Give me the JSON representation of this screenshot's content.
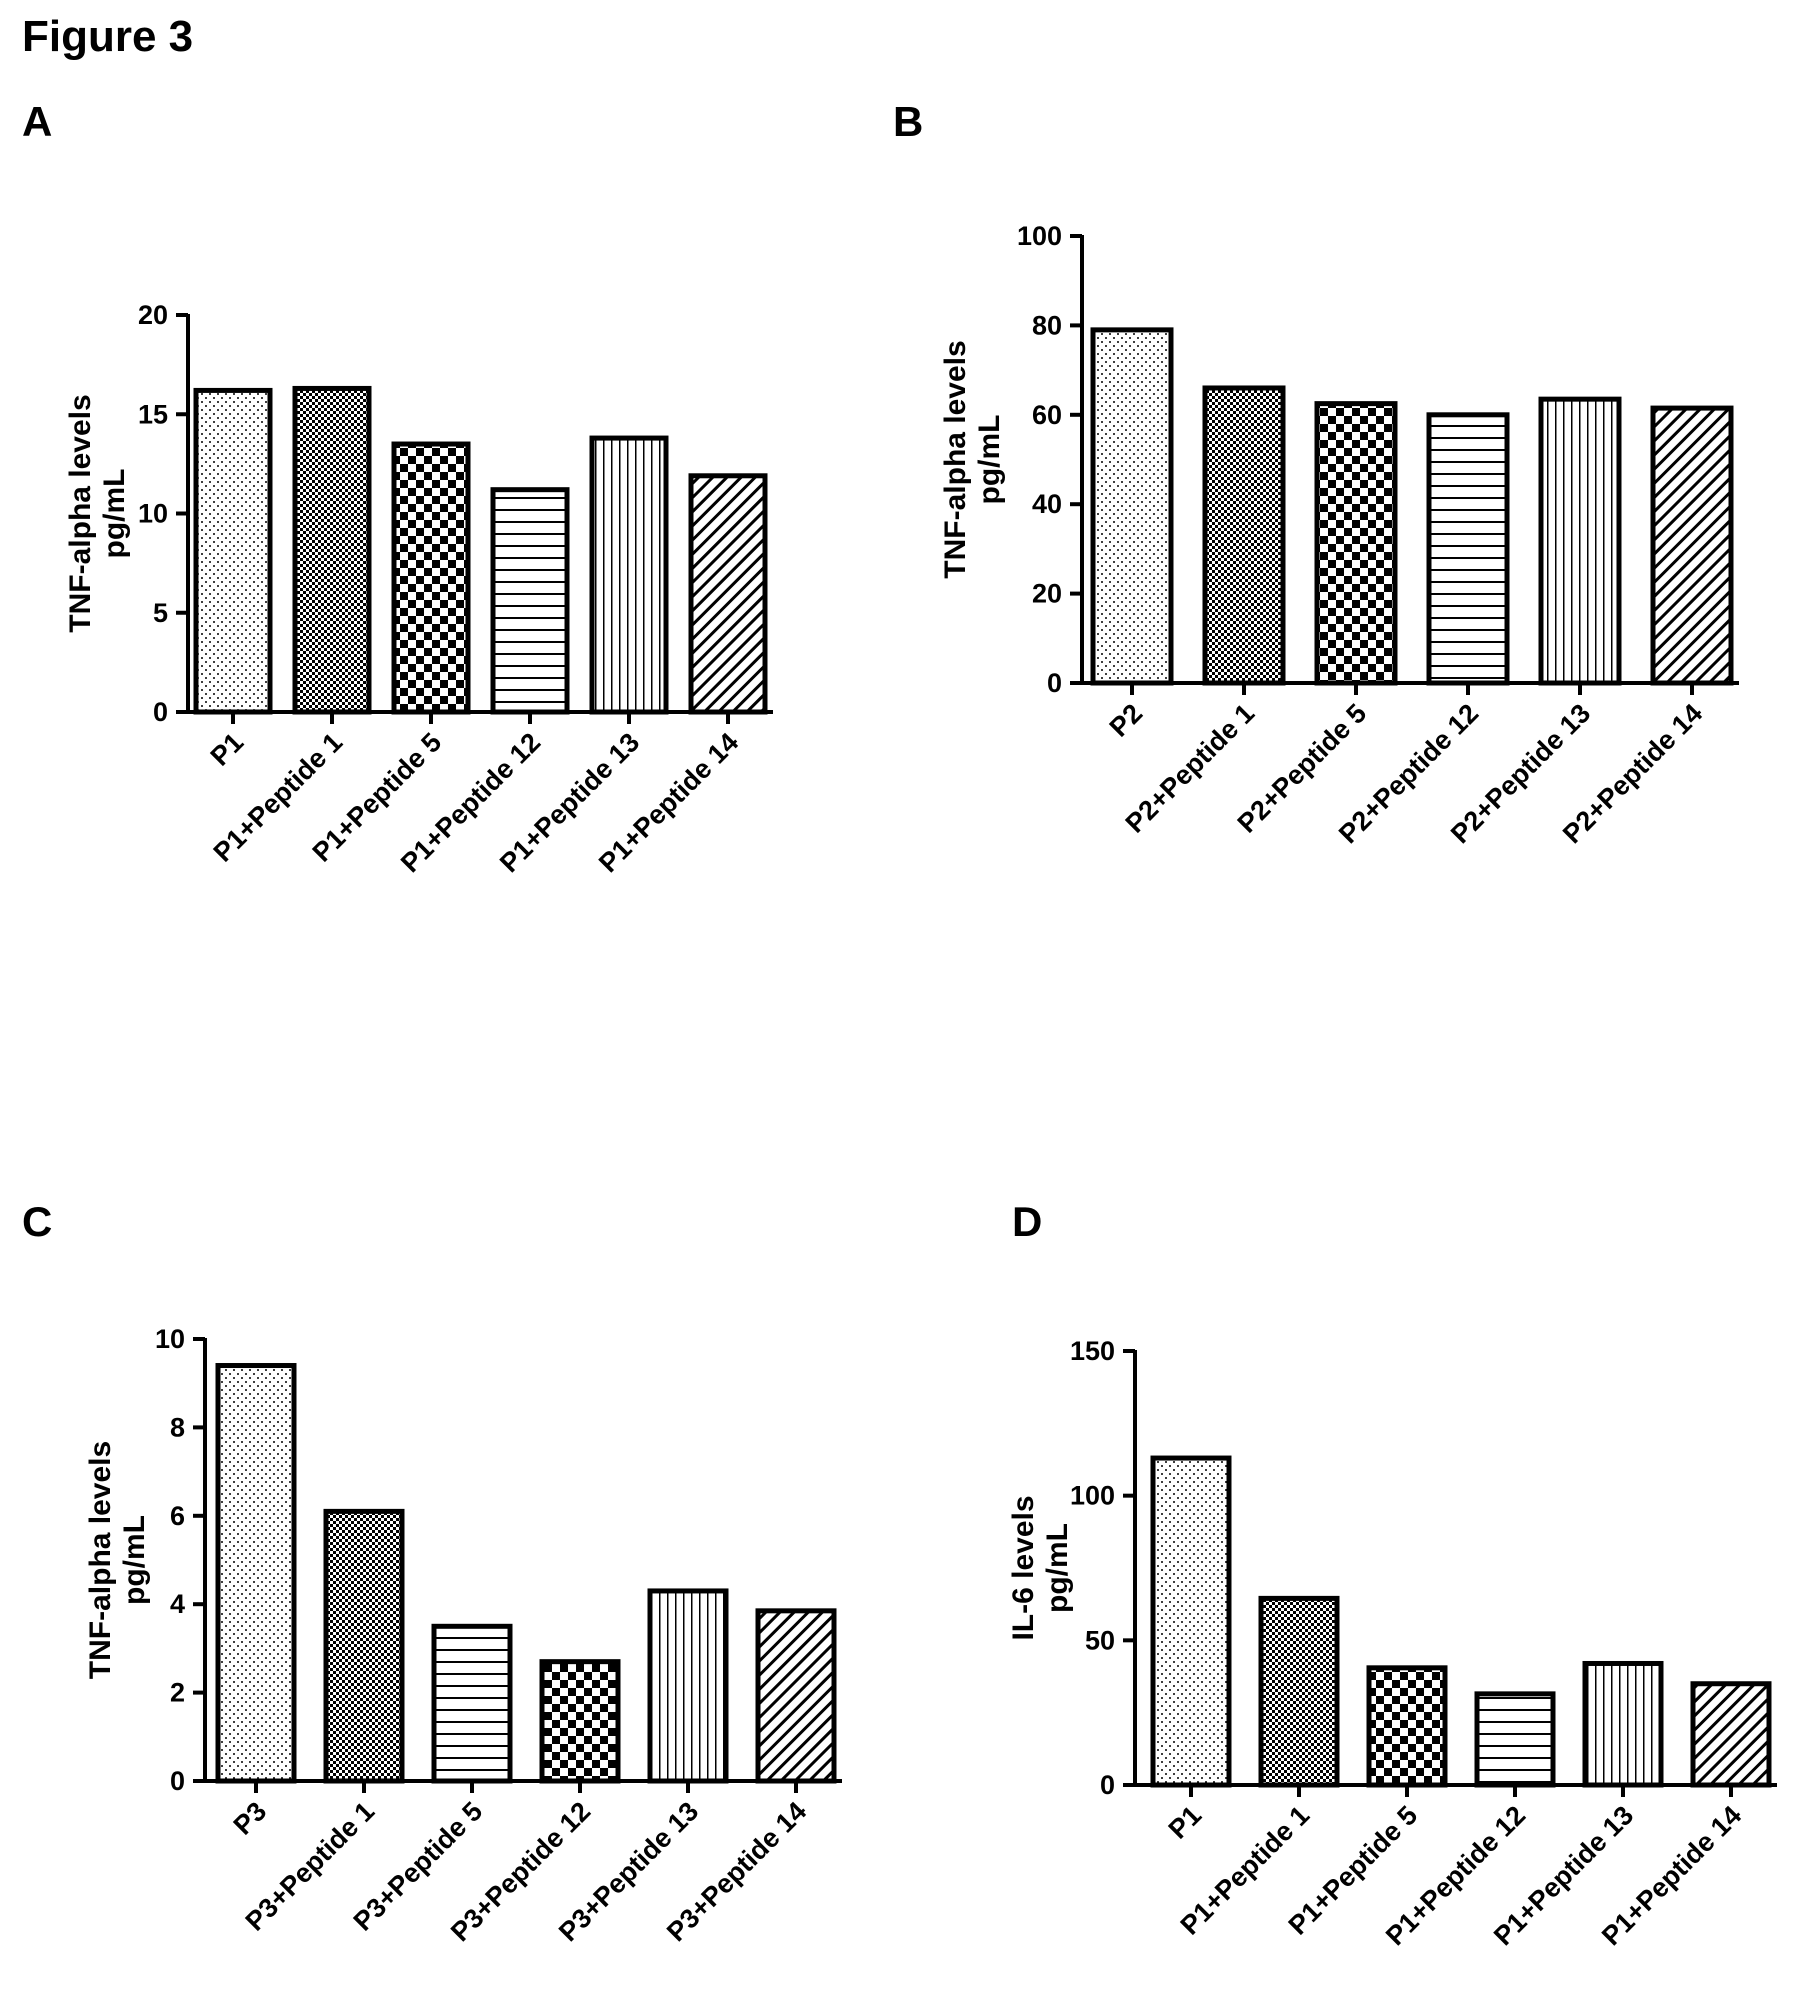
{
  "figure_title": "Figure 3",
  "panels": [
    "A",
    "B",
    "C",
    "D"
  ],
  "chart_data": [
    {
      "type": "bar",
      "panel": "A",
      "categories": [
        "P1",
        "P1+Peptide 1",
        "P1+Peptide 5",
        "P1+Peptide 12",
        "P1+Peptide 13",
        "P1+Peptide 14"
      ],
      "values": [
        16.2,
        16.3,
        13.5,
        11.2,
        13.8,
        11.9
      ],
      "patterns": [
        "dots",
        "dense-check",
        "check",
        "hlines",
        "vlines",
        "diag"
      ],
      "ylabel": [
        "TNF-alpha levels",
        "pg/mL"
      ],
      "ylim": [
        0,
        20
      ],
      "yticks": [
        0,
        5,
        10,
        15,
        20
      ]
    },
    {
      "type": "bar",
      "panel": "B",
      "categories": [
        "P2",
        "P2+Peptide 1",
        "P2+Peptide 5",
        "P2+Peptide 12",
        "P2+Peptide 13",
        "P2+Peptide 14"
      ],
      "values": [
        79,
        66,
        62.5,
        60,
        63.5,
        61.5
      ],
      "patterns": [
        "dots",
        "dense-check",
        "check",
        "hlines",
        "vlines",
        "diag"
      ],
      "ylabel": [
        "TNF-alpha levels",
        "pg/mL"
      ],
      "ylim": [
        0,
        100
      ],
      "yticks": [
        0,
        20,
        40,
        60,
        80,
        100
      ]
    },
    {
      "type": "bar",
      "panel": "C",
      "categories": [
        "P3",
        "P3+Peptide 1",
        "P3+Peptide 5",
        "P3+Peptide 12",
        "P3+Peptide 13",
        "P3+Peptide 14"
      ],
      "values": [
        9.4,
        6.1,
        3.5,
        2.7,
        4.3,
        3.85
      ],
      "patterns": [
        "dots",
        "dense-check",
        "hlines",
        "check",
        "vlines",
        "diag"
      ],
      "ylabel": [
        "TNF-alpha levels",
        "pg/mL"
      ],
      "ylim": [
        0,
        10
      ],
      "yticks": [
        0,
        2,
        4,
        6,
        8,
        10
      ]
    },
    {
      "type": "bar",
      "panel": "D",
      "categories": [
        "P1",
        "P1+Peptide 1",
        "P1+Peptide 5",
        "P1+Peptide 12",
        "P1+Peptide 13",
        "P1+Peptide 14"
      ],
      "values": [
        113,
        64.5,
        40.5,
        31.5,
        42,
        35
      ],
      "patterns": [
        "dots",
        "dense-check",
        "check",
        "hlines",
        "vlines",
        "diag"
      ],
      "ylabel": [
        "IL-6 levels",
        "pg/mL"
      ],
      "ylim": [
        0,
        150
      ],
      "yticks": [
        0,
        50,
        100,
        150
      ]
    }
  ]
}
